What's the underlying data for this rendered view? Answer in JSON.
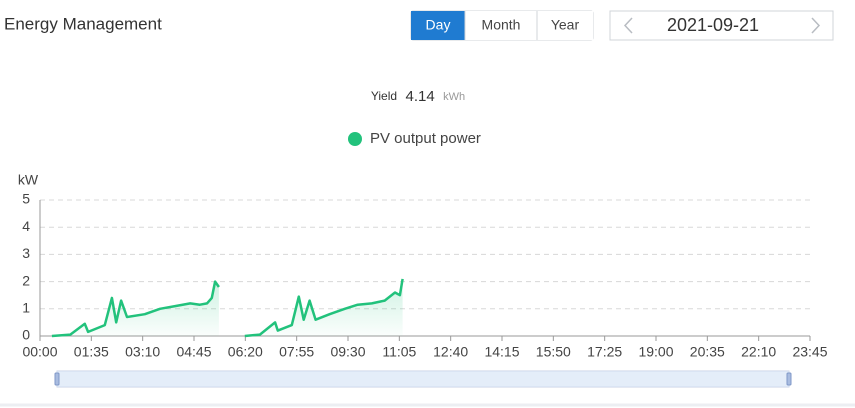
{
  "header": {
    "title": "Energy Management"
  },
  "period_tabs": [
    "Day",
    "Month",
    "Year"
  ],
  "active_tab": 0,
  "date": "2021-09-21",
  "yield": {
    "label": "Yield",
    "value": "4.14",
    "unit": "kWh"
  },
  "chart_data": {
    "type": "line",
    "y_label": "kW",
    "legend": "top",
    "grid": true,
    "x": [
      22,
      56,
      83,
      89,
      120,
      133,
      141,
      150,
      161,
      194,
      222,
      250,
      278,
      296,
      309,
      318,
      324,
      331,
      355,
      379,
      407,
      435,
      440,
      466,
      479,
      488,
      499,
      510,
      536,
      564,
      588,
      614,
      638,
      657,
      666,
      671
    ],
    "series": [
      {
        "name": "PV output power",
        "color": "#22c27c",
        "values": [
          0,
          0.05,
          0.45,
          0.15,
          0.4,
          1.4,
          0.5,
          1.3,
          0.7,
          0.8,
          1.0,
          1.1,
          1.2,
          1.15,
          1.2,
          1.4,
          2.0,
          1.8,
          null,
          0,
          0.05,
          0.5,
          0.2,
          0.4,
          1.45,
          0.6,
          1.3,
          0.6,
          0.8,
          1.0,
          1.15,
          1.2,
          1.3,
          1.6,
          1.5,
          2.1
        ]
      }
    ],
    "xlim": [
      0,
      1425
    ],
    "ylim": [
      0,
      5
    ],
    "yticks": [
      0,
      1,
      2,
      3,
      4,
      5
    ],
    "xticks": [
      {
        "value": 0,
        "label": "00:00"
      },
      {
        "value": 95,
        "label": "01:35"
      },
      {
        "value": 190,
        "label": "03:10"
      },
      {
        "value": 285,
        "label": "04:45"
      },
      {
        "value": 380,
        "label": "06:20"
      },
      {
        "value": 475,
        "label": "07:55"
      },
      {
        "value": 570,
        "label": "09:30"
      },
      {
        "value": 665,
        "label": "11:05"
      },
      {
        "value": 760,
        "label": "12:40"
      },
      {
        "value": 855,
        "label": "14:15"
      },
      {
        "value": 950,
        "label": "15:50"
      },
      {
        "value": 1045,
        "label": "17:25"
      },
      {
        "value": 1140,
        "label": "19:00"
      },
      {
        "value": 1235,
        "label": "20:35"
      },
      {
        "value": 1330,
        "label": "22:10"
      },
      {
        "value": 1425,
        "label": "23:45"
      }
    ]
  }
}
